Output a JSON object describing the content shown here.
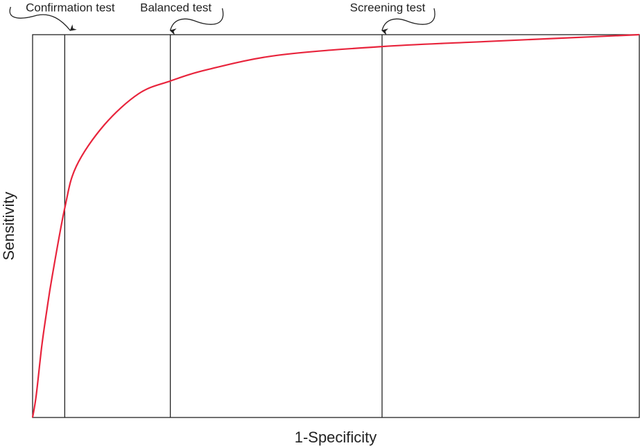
{
  "chart_data": {
    "type": "line",
    "x_label": "1-Specificity",
    "y_label": "Sensitivity",
    "xlim": [
      0,
      1
    ],
    "ylim": [
      0,
      1
    ],
    "series": [
      {
        "color": "#e8243c",
        "x": [
          0,
          0.006,
          0.015,
          0.023,
          0.032,
          0.053,
          0.072,
          0.118,
          0.175,
          0.227,
          0.289,
          0.403,
          0.576,
          0.746,
          1
        ],
        "values": [
          0,
          0.058,
          0.185,
          0.275,
          0.366,
          0.547,
          0.656,
          0.764,
          0.846,
          0.879,
          0.909,
          0.946,
          0.969,
          0.982,
          1
        ]
      }
    ],
    "annotations": [
      {
        "text": "Confirmation test",
        "x": 0.053
      },
      {
        "text": "Balanced test",
        "x": 0.227
      },
      {
        "text": "Screening test",
        "x": 0.576
      }
    ]
  }
}
